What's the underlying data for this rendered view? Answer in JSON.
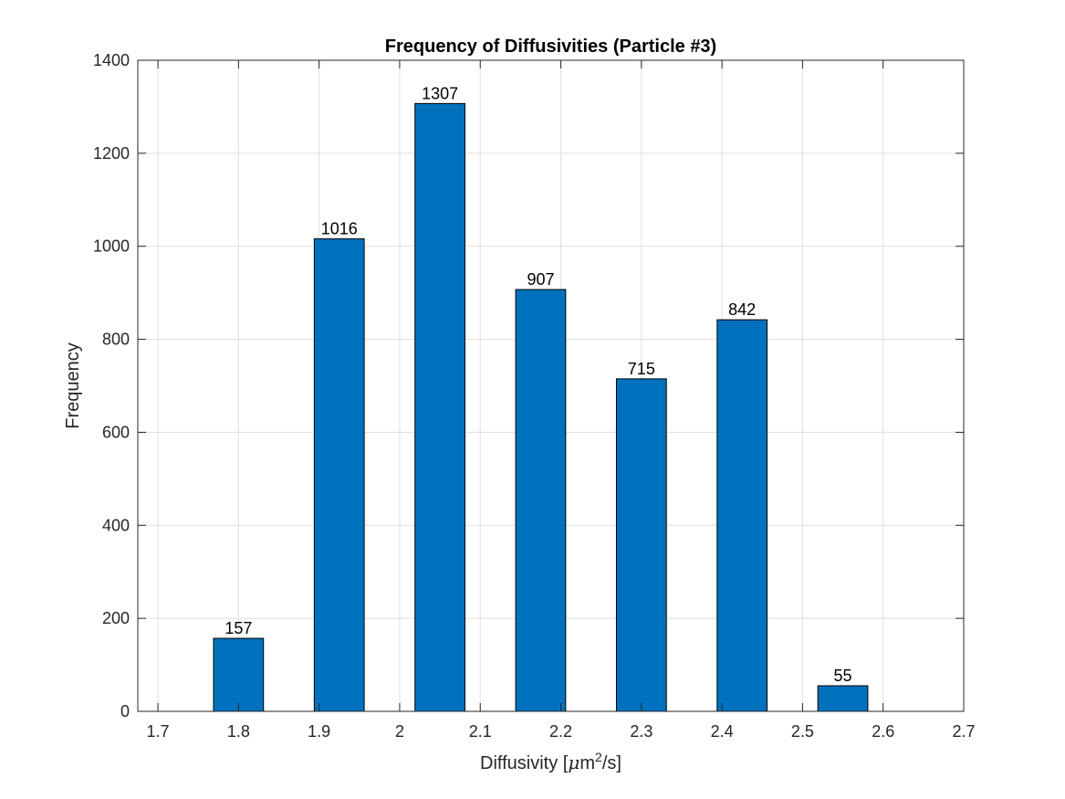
{
  "chart_data": {
    "type": "bar",
    "title": "Frequency of Diffusivities (Particle #3)",
    "xlabel_parts": {
      "prefix": "Diffusivity [",
      "mu": "μ",
      "unit_base": "m",
      "superscript": "2",
      "suffix": "/s]"
    },
    "ylabel": "Frequency",
    "x": [
      1.8,
      1.925,
      2.05,
      2.175,
      2.3,
      2.425,
      2.55
    ],
    "values": [
      157,
      1016,
      1307,
      907,
      715,
      842,
      55
    ],
    "data_labels": [
      "157",
      "1016",
      "1307",
      "907",
      "715",
      "842",
      "55"
    ],
    "bar_width": 0.062,
    "xlim": [
      1.675,
      2.7
    ],
    "ylim": [
      0,
      1400
    ],
    "xticks": [
      1.7,
      1.8,
      1.9,
      2.0,
      2.1,
      2.2,
      2.3,
      2.4,
      2.5,
      2.6,
      2.7
    ],
    "xtick_labels": [
      "1.7",
      "1.8",
      "1.9",
      "2",
      "2.1",
      "2.2",
      "2.3",
      "2.4",
      "2.5",
      "2.6",
      "2.7"
    ],
    "yticks": [
      0,
      200,
      400,
      600,
      800,
      1000,
      1200,
      1400
    ],
    "ytick_labels": [
      "0",
      "200",
      "400",
      "600",
      "800",
      "1000",
      "1200",
      "1400"
    ],
    "grid": true,
    "colors": {
      "bar": "#0072BD",
      "bar_edge": "#000000",
      "grid": "#dfdfdf",
      "axis": "#262626"
    }
  }
}
